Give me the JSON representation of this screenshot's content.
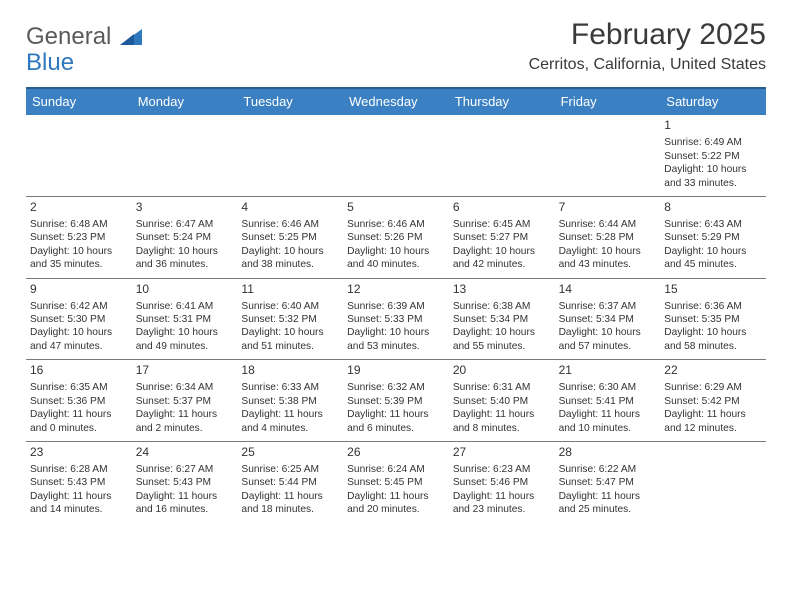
{
  "logo": {
    "line1": "General",
    "line2": "Blue"
  },
  "title": "February 2025",
  "location": "Cerritos, California, United States",
  "colors": {
    "header_bg": "#3a80c2",
    "header_text": "#ffffff",
    "top_border": "#2a5d8a",
    "row_border": "#7a7a7a",
    "logo_gray": "#5a5a5a",
    "logo_blue": "#2f78bd",
    "text": "#333333",
    "background": "#ffffff"
  },
  "day_names": [
    "Sunday",
    "Monday",
    "Tuesday",
    "Wednesday",
    "Thursday",
    "Friday",
    "Saturday"
  ],
  "weeks": [
    [
      null,
      null,
      null,
      null,
      null,
      null,
      {
        "n": "1",
        "sunrise": "Sunrise: 6:49 AM",
        "sunset": "Sunset: 5:22 PM",
        "daylight": "Daylight: 10 hours and 33 minutes."
      }
    ],
    [
      {
        "n": "2",
        "sunrise": "Sunrise: 6:48 AM",
        "sunset": "Sunset: 5:23 PM",
        "daylight": "Daylight: 10 hours and 35 minutes."
      },
      {
        "n": "3",
        "sunrise": "Sunrise: 6:47 AM",
        "sunset": "Sunset: 5:24 PM",
        "daylight": "Daylight: 10 hours and 36 minutes."
      },
      {
        "n": "4",
        "sunrise": "Sunrise: 6:46 AM",
        "sunset": "Sunset: 5:25 PM",
        "daylight": "Daylight: 10 hours and 38 minutes."
      },
      {
        "n": "5",
        "sunrise": "Sunrise: 6:46 AM",
        "sunset": "Sunset: 5:26 PM",
        "daylight": "Daylight: 10 hours and 40 minutes."
      },
      {
        "n": "6",
        "sunrise": "Sunrise: 6:45 AM",
        "sunset": "Sunset: 5:27 PM",
        "daylight": "Daylight: 10 hours and 42 minutes."
      },
      {
        "n": "7",
        "sunrise": "Sunrise: 6:44 AM",
        "sunset": "Sunset: 5:28 PM",
        "daylight": "Daylight: 10 hours and 43 minutes."
      },
      {
        "n": "8",
        "sunrise": "Sunrise: 6:43 AM",
        "sunset": "Sunset: 5:29 PM",
        "daylight": "Daylight: 10 hours and 45 minutes."
      }
    ],
    [
      {
        "n": "9",
        "sunrise": "Sunrise: 6:42 AM",
        "sunset": "Sunset: 5:30 PM",
        "daylight": "Daylight: 10 hours and 47 minutes."
      },
      {
        "n": "10",
        "sunrise": "Sunrise: 6:41 AM",
        "sunset": "Sunset: 5:31 PM",
        "daylight": "Daylight: 10 hours and 49 minutes."
      },
      {
        "n": "11",
        "sunrise": "Sunrise: 6:40 AM",
        "sunset": "Sunset: 5:32 PM",
        "daylight": "Daylight: 10 hours and 51 minutes."
      },
      {
        "n": "12",
        "sunrise": "Sunrise: 6:39 AM",
        "sunset": "Sunset: 5:33 PM",
        "daylight": "Daylight: 10 hours and 53 minutes."
      },
      {
        "n": "13",
        "sunrise": "Sunrise: 6:38 AM",
        "sunset": "Sunset: 5:34 PM",
        "daylight": "Daylight: 10 hours and 55 minutes."
      },
      {
        "n": "14",
        "sunrise": "Sunrise: 6:37 AM",
        "sunset": "Sunset: 5:34 PM",
        "daylight": "Daylight: 10 hours and 57 minutes."
      },
      {
        "n": "15",
        "sunrise": "Sunrise: 6:36 AM",
        "sunset": "Sunset: 5:35 PM",
        "daylight": "Daylight: 10 hours and 58 minutes."
      }
    ],
    [
      {
        "n": "16",
        "sunrise": "Sunrise: 6:35 AM",
        "sunset": "Sunset: 5:36 PM",
        "daylight": "Daylight: 11 hours and 0 minutes."
      },
      {
        "n": "17",
        "sunrise": "Sunrise: 6:34 AM",
        "sunset": "Sunset: 5:37 PM",
        "daylight": "Daylight: 11 hours and 2 minutes."
      },
      {
        "n": "18",
        "sunrise": "Sunrise: 6:33 AM",
        "sunset": "Sunset: 5:38 PM",
        "daylight": "Daylight: 11 hours and 4 minutes."
      },
      {
        "n": "19",
        "sunrise": "Sunrise: 6:32 AM",
        "sunset": "Sunset: 5:39 PM",
        "daylight": "Daylight: 11 hours and 6 minutes."
      },
      {
        "n": "20",
        "sunrise": "Sunrise: 6:31 AM",
        "sunset": "Sunset: 5:40 PM",
        "daylight": "Daylight: 11 hours and 8 minutes."
      },
      {
        "n": "21",
        "sunrise": "Sunrise: 6:30 AM",
        "sunset": "Sunset: 5:41 PM",
        "daylight": "Daylight: 11 hours and 10 minutes."
      },
      {
        "n": "22",
        "sunrise": "Sunrise: 6:29 AM",
        "sunset": "Sunset: 5:42 PM",
        "daylight": "Daylight: 11 hours and 12 minutes."
      }
    ],
    [
      {
        "n": "23",
        "sunrise": "Sunrise: 6:28 AM",
        "sunset": "Sunset: 5:43 PM",
        "daylight": "Daylight: 11 hours and 14 minutes."
      },
      {
        "n": "24",
        "sunrise": "Sunrise: 6:27 AM",
        "sunset": "Sunset: 5:43 PM",
        "daylight": "Daylight: 11 hours and 16 minutes."
      },
      {
        "n": "25",
        "sunrise": "Sunrise: 6:25 AM",
        "sunset": "Sunset: 5:44 PM",
        "daylight": "Daylight: 11 hours and 18 minutes."
      },
      {
        "n": "26",
        "sunrise": "Sunrise: 6:24 AM",
        "sunset": "Sunset: 5:45 PM",
        "daylight": "Daylight: 11 hours and 20 minutes."
      },
      {
        "n": "27",
        "sunrise": "Sunrise: 6:23 AM",
        "sunset": "Sunset: 5:46 PM",
        "daylight": "Daylight: 11 hours and 23 minutes."
      },
      {
        "n": "28",
        "sunrise": "Sunrise: 6:22 AM",
        "sunset": "Sunset: 5:47 PM",
        "daylight": "Daylight: 11 hours and 25 minutes."
      },
      null
    ]
  ]
}
